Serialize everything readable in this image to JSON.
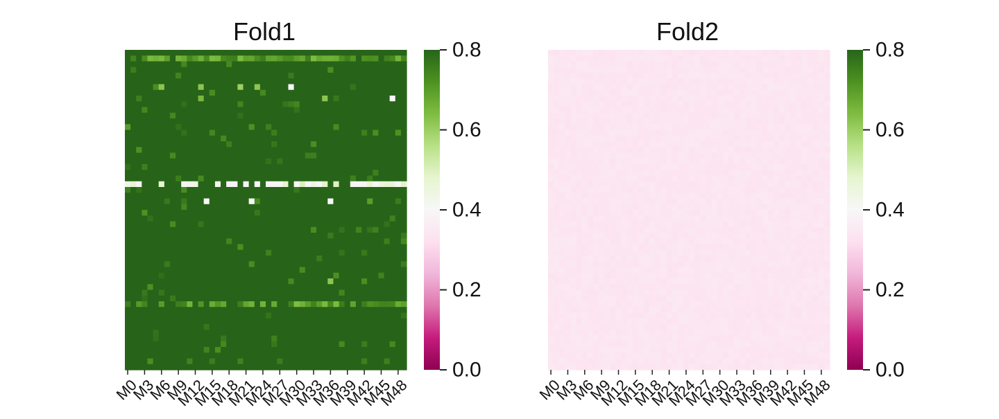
{
  "chart_data": [
    {
      "type": "heatmap",
      "title": "Fold1",
      "xlabel": "",
      "ylabel": "",
      "x_tick_labels": [
        "M0",
        "M3",
        "M6",
        "M9",
        "M12",
        "M15",
        "M18",
        "M21",
        "M24",
        "M27",
        "M30",
        "M33",
        "M36",
        "M39",
        "M42",
        "M45",
        "M48"
      ],
      "n_cols": 50,
      "n_rows": 56,
      "colormap": "PiYG",
      "vmin": 0.0,
      "vmax": 0.8,
      "colorbar_ticks": [
        "0.0",
        "0.2",
        "0.4",
        "0.6",
        "0.8"
      ],
      "base_value": 0.8,
      "row_patterns": [
        {
          "row": 1,
          "description": "mostly 0.68-0.74",
          "value": 0.7
        },
        {
          "row": 23,
          "description": "mostly 0.40-0.48",
          "value": 0.44
        },
        {
          "row": 44,
          "description": "mixed 0.5-0.8",
          "value": 0.7
        }
      ],
      "notable_cells": [
        {
          "row": 6,
          "col": 6,
          "value": 0.62
        },
        {
          "row": 6,
          "col": 13,
          "value": 0.62
        },
        {
          "row": 6,
          "col": 20,
          "value": 0.6
        },
        {
          "row": 6,
          "col": 23,
          "value": 0.62
        },
        {
          "row": 6,
          "col": 29,
          "value": 0.4
        },
        {
          "row": 8,
          "col": 13,
          "value": 0.65
        },
        {
          "row": 8,
          "col": 35,
          "value": 0.62
        },
        {
          "row": 8,
          "col": 47,
          "value": 0.4
        },
        {
          "row": 13,
          "col": 0,
          "value": 0.7
        },
        {
          "row": 26,
          "col": 14,
          "value": 0.4
        },
        {
          "row": 26,
          "col": 22,
          "value": 0.4
        },
        {
          "row": 26,
          "col": 36,
          "value": 0.4
        },
        {
          "row": 26,
          "col": 43,
          "value": 0.7
        },
        {
          "row": 40,
          "col": 36,
          "value": 0.62
        }
      ]
    },
    {
      "type": "heatmap",
      "title": "Fold2",
      "xlabel": "",
      "ylabel": "",
      "x_tick_labels": [
        "M0",
        "M3",
        "M6",
        "M9",
        "M12",
        "M15",
        "M18",
        "M21",
        "M24",
        "M27",
        "M30",
        "M33",
        "M36",
        "M39",
        "M42",
        "M45",
        "M48"
      ],
      "n_cols": 50,
      "n_rows": 56,
      "colormap": "PiYG",
      "vmin": 0.0,
      "vmax": 0.8,
      "colorbar_ticks": [
        "0.0",
        "0.2",
        "0.4",
        "0.6",
        "0.8"
      ],
      "base_value": 0.34,
      "value_range": [
        0.33,
        0.35
      ]
    }
  ],
  "colors": {
    "cmap_stops": [
      "#8e0152",
      "#c51b7d",
      "#de77ae",
      "#f1b6da",
      "#fde0ef",
      "#f7f7f7",
      "#e6f5d0",
      "#b8e186",
      "#7fbc41",
      "#4d9221",
      "#276419"
    ]
  }
}
